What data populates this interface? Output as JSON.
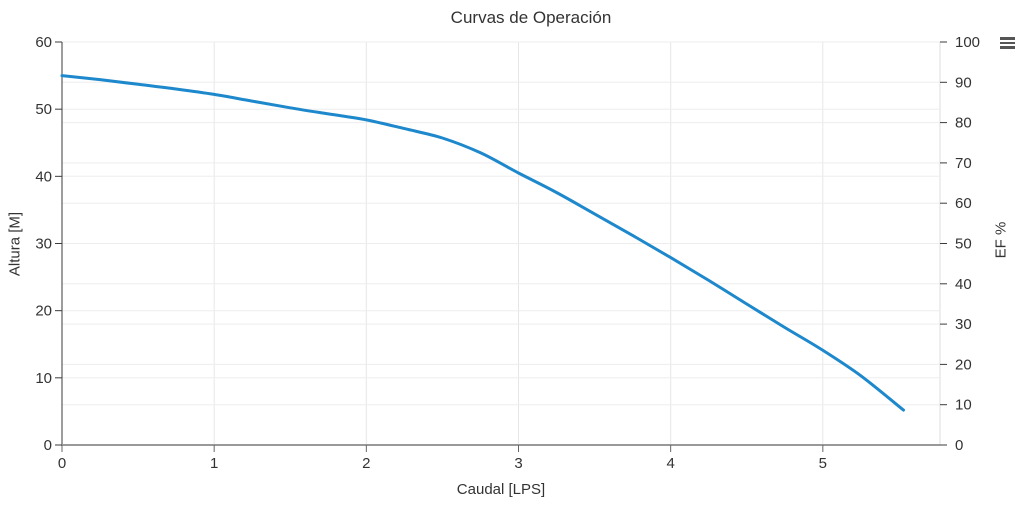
{
  "chart": {
    "title": "Curvas de Operación",
    "menu_icon": "hamburger-menu-icon"
  },
  "chart_data": {
    "type": "line",
    "title": "Curvas de Operación",
    "grid": true,
    "legend": "none",
    "x_axis": {
      "label": "Caudal [LPS]",
      "ticks": [
        0,
        1,
        2,
        3,
        4,
        5
      ],
      "range": [
        0,
        5.77
      ]
    },
    "y_axis_left": {
      "label": "Altura [M]",
      "ticks": [
        0,
        10,
        20,
        30,
        40,
        50,
        60
      ],
      "range": [
        0,
        60
      ]
    },
    "y_axis_right": {
      "label": "EF %",
      "ticks": [
        0,
        10,
        20,
        30,
        40,
        50,
        60,
        70,
        80,
        90,
        100
      ],
      "range": [
        0,
        100
      ]
    },
    "series": [
      {
        "name": "Altura",
        "axis": "left",
        "color": "#1e88cc",
        "points": [
          [
            0,
            55
          ],
          [
            0.25,
            54.4
          ],
          [
            0.5,
            53.7
          ],
          [
            0.75,
            53.0
          ],
          [
            1,
            52.2
          ],
          [
            1.25,
            51.2
          ],
          [
            1.5,
            50.2
          ],
          [
            1.75,
            49.3
          ],
          [
            2,
            48.4
          ],
          [
            2.25,
            47.1
          ],
          [
            2.5,
            45.7
          ],
          [
            2.75,
            43.5
          ],
          [
            3,
            40.5
          ],
          [
            3.25,
            37.6
          ],
          [
            3.5,
            34.4
          ],
          [
            3.75,
            31.2
          ],
          [
            4,
            27.9
          ],
          [
            4.25,
            24.5
          ],
          [
            4.5,
            21.0
          ],
          [
            4.75,
            17.5
          ],
          [
            5,
            14.1
          ],
          [
            5.25,
            10.3
          ],
          [
            5.53,
            5.2
          ]
        ]
      }
    ]
  }
}
